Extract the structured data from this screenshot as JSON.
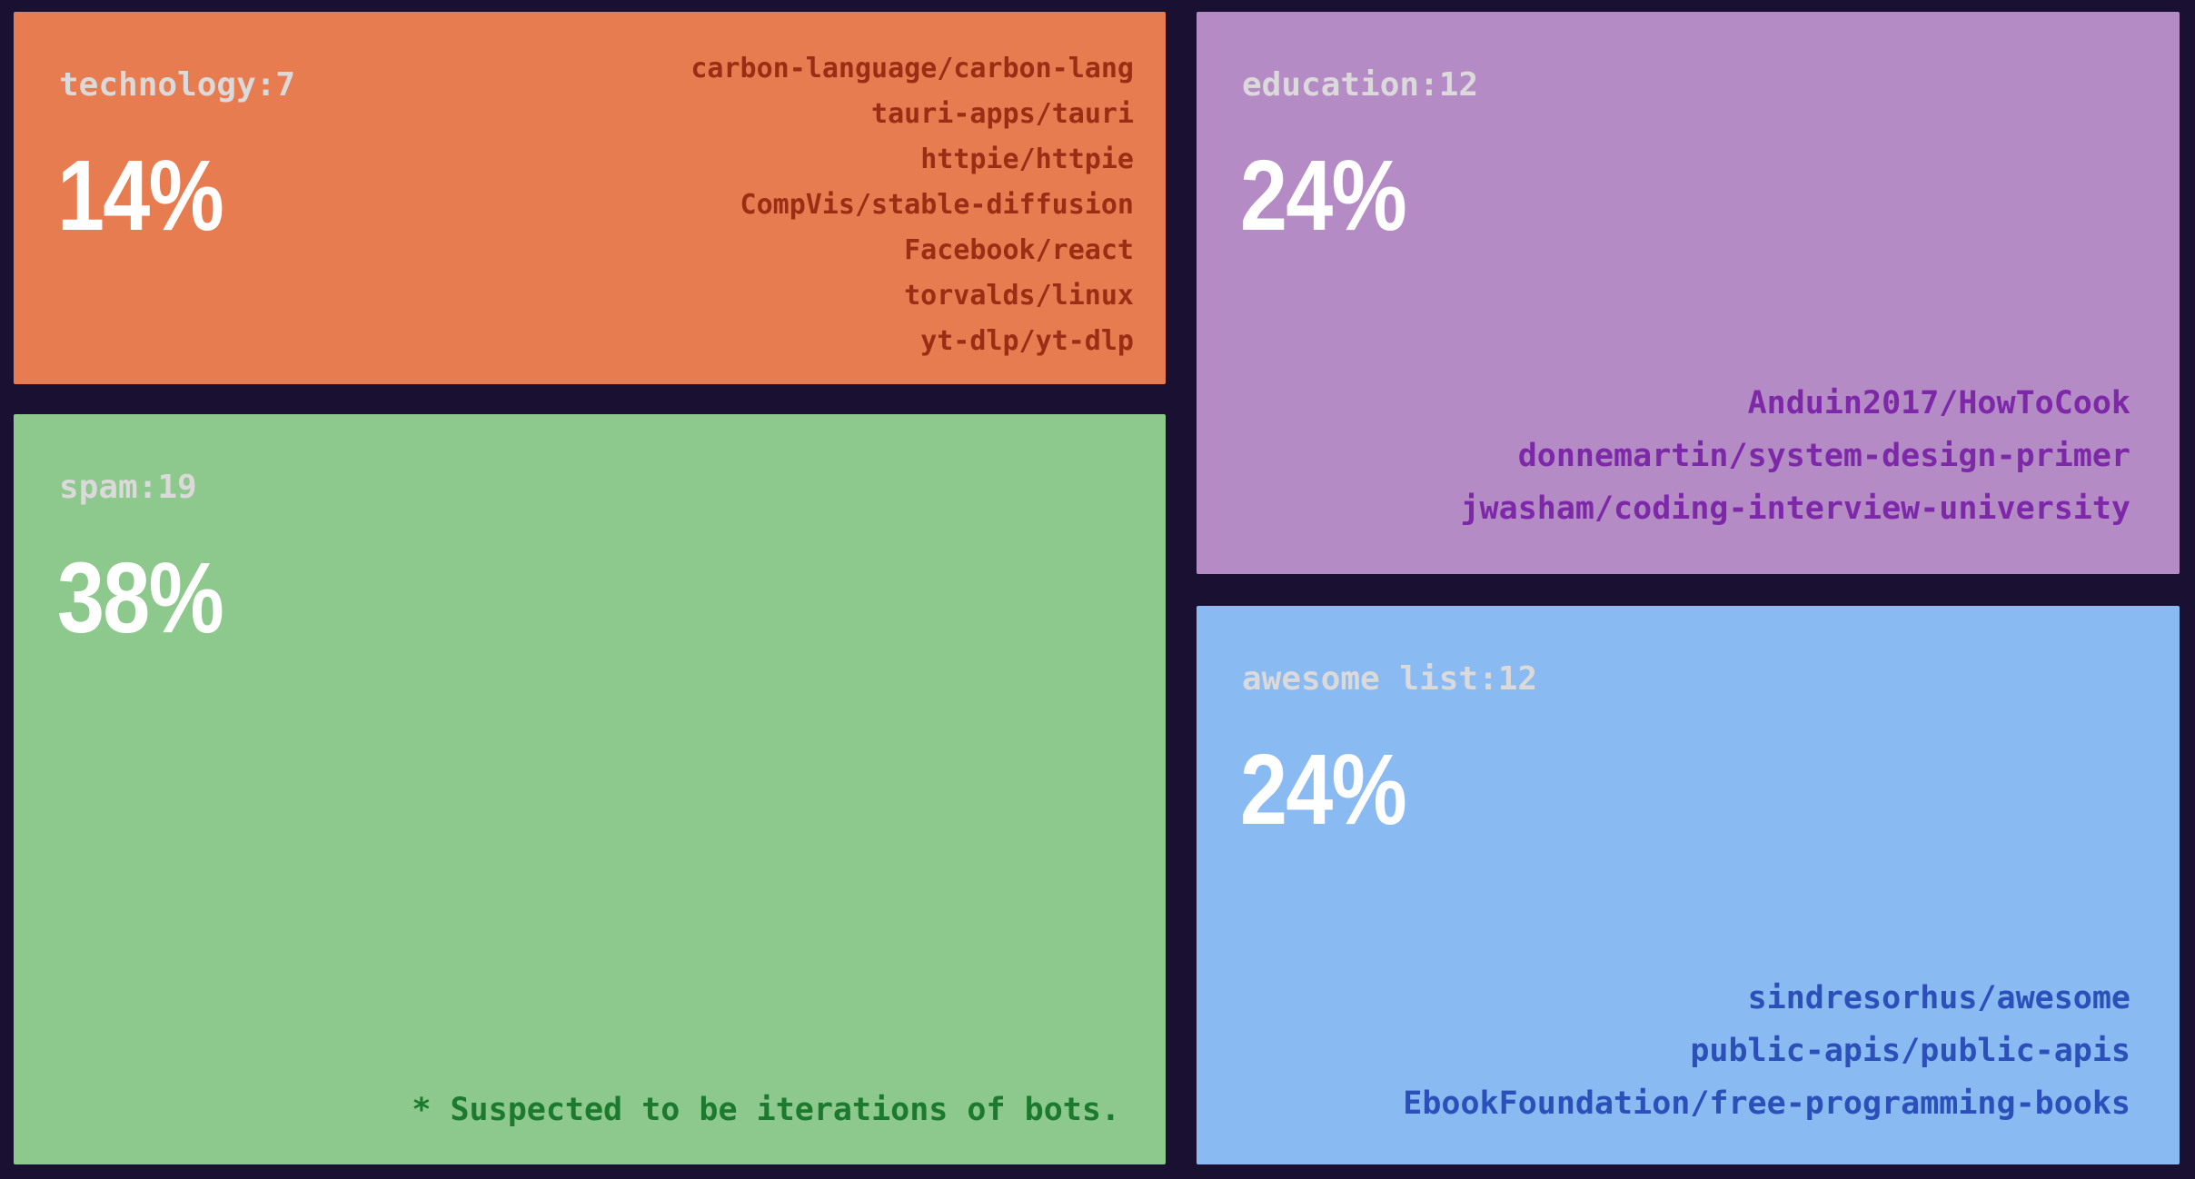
{
  "colors": {
    "background": "#1A1132",
    "technology_block": "#E87C51",
    "technology_repo_text": "#9A2D14",
    "spam_block": "#8DC88C",
    "spam_note_text": "#1B7A2E",
    "education_block": "#B58BC5",
    "education_repo_text": "#7D28A8",
    "awesome_block": "#8ABAF2",
    "awesome_repo_text": "#2B50B9",
    "category_label_text": "#DBD9D9",
    "percent_text": "#FFFFFF"
  },
  "blocks": {
    "technology": {
      "header": "technology:7",
      "percent": "14%",
      "repos": [
        "carbon-language/carbon-lang",
        "tauri-apps/tauri",
        "httpie/httpie",
        "CompVis/stable-diffusion",
        "Facebook/react",
        "torvalds/linux",
        "yt-dlp/yt-dlp"
      ]
    },
    "spam": {
      "header": "spam:19",
      "percent": "38%",
      "footnote": "* Suspected to be iterations of bots."
    },
    "education": {
      "header": "education:12",
      "percent": "24%",
      "repos": [
        "Anduin2017/HowToCook",
        "donnemartin/system-design-primer",
        "jwasham/coding-interview-university"
      ]
    },
    "awesome_list": {
      "header": "awesome list:12",
      "percent": "24%",
      "repos": [
        "sindresorhus/awesome",
        "public-apis/public-apis",
        "EbookFoundation/free-programming-books"
      ]
    }
  },
  "chart_data": {
    "type": "treemap",
    "title": "",
    "legend": "none",
    "value_unit": "repositories",
    "items": [
      {
        "label": "technology",
        "count": 7,
        "percent": 14,
        "color": "#E87C51",
        "repos": [
          "carbon-language/carbon-lang",
          "tauri-apps/tauri",
          "httpie/httpie",
          "CompVis/stable-diffusion",
          "Facebook/react",
          "torvalds/linux",
          "yt-dlp/yt-dlp"
        ]
      },
      {
        "label": "spam",
        "count": 19,
        "percent": 38,
        "color": "#8DC88C",
        "annotation": "* Suspected to be iterations of bots."
      },
      {
        "label": "education",
        "count": 12,
        "percent": 24,
        "color": "#B58BC5",
        "repos": [
          "Anduin2017/HowToCook",
          "donnemartin/system-design-primer",
          "jwasham/coding-interview-university"
        ]
      },
      {
        "label": "awesome list",
        "count": 12,
        "percent": 24,
        "color": "#8ABAF2",
        "repos": [
          "sindresorhus/awesome",
          "public-apis/public-apis",
          "EbookFoundation/free-programming-books"
        ]
      }
    ]
  }
}
